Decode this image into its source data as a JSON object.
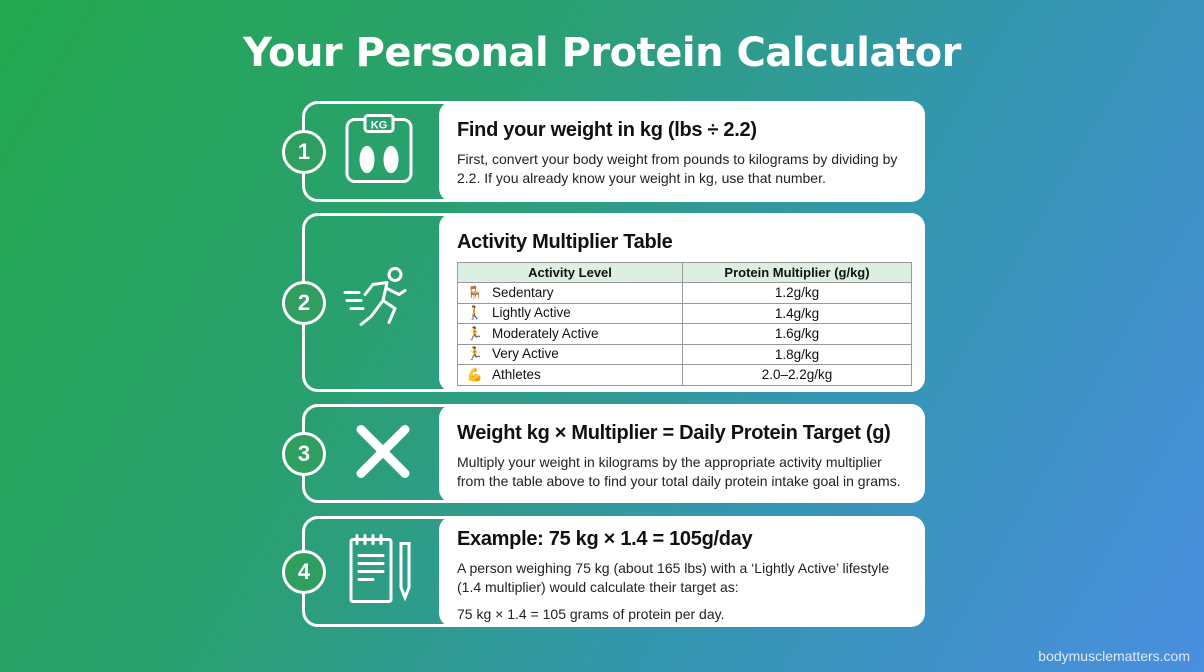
{
  "title": "Your Personal Protein Calculator",
  "steps": [
    {
      "number": "1",
      "icon": "scale-kg-icon",
      "icon_text": "KG",
      "heading": "Find your weight in kg (lbs ÷ 2.2)",
      "text": "First, convert your body weight from pounds to kilograms by dividing by 2.2. If you already know your weight in kg, use that number."
    },
    {
      "number": "2",
      "icon": "running-person-icon",
      "heading": "Activity Multiplier Table",
      "table": {
        "headers": [
          "Activity Level",
          "Protein Multiplier (g/kg)"
        ],
        "rows": [
          {
            "icon": "desk-person-icon",
            "level": "Sedentary",
            "value": "1.2g/kg"
          },
          {
            "icon": "walking-person-icon",
            "level": "Lightly Active",
            "value": "1.4g/kg"
          },
          {
            "icon": "jogging-person-icon",
            "level": "Moderately Active",
            "value": "1.6g/kg"
          },
          {
            "icon": "sprinting-person-icon",
            "level": "Very Active",
            "value": "1.8g/kg"
          },
          {
            "icon": "muscle-torso-icon",
            "level": "Athletes",
            "value": "2.0–2.2g/kg"
          }
        ]
      }
    },
    {
      "number": "3",
      "icon": "multiply-icon",
      "heading": "Weight kg × Multiplier = Daily Protein Target (g)",
      "text": "Multiply your weight in kilograms by the appropriate activity multiplier from the table above to find your total daily protein intake goal in grams."
    },
    {
      "number": "4",
      "icon": "notepad-pen-icon",
      "heading": "Example: 75 kg × 1.4 = 105g/day",
      "text": "A person weighing 75 kg (about 165 lbs) with a ‘Lightly Active’ lifestyle (1.4 multiplier) would calculate their target as:",
      "result": "75 kg × 1.4 = 105 grams of protein per day."
    }
  ],
  "footer": "bodymusclematters.com",
  "colors": {
    "badge": "#2f9e5e",
    "table_header": "#dcefe2",
    "bg_start": "#22a84e",
    "bg_end": "#4a8ee0"
  }
}
